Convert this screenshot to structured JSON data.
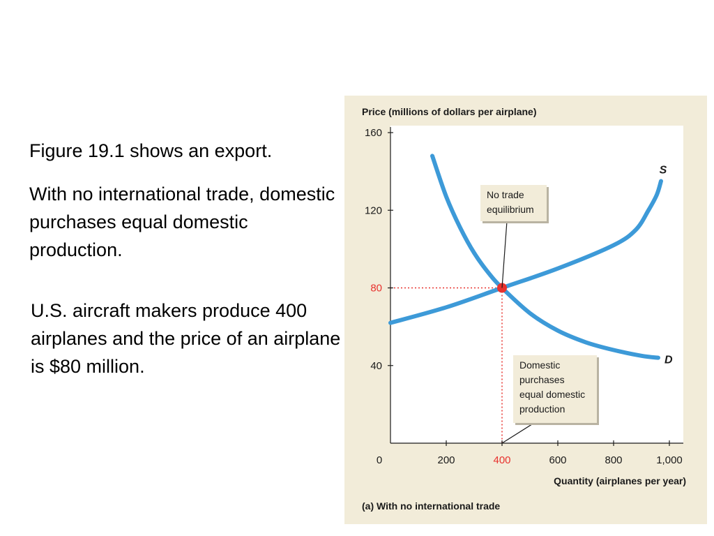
{
  "slide": {
    "paragraphs": [
      "Figure 19.1 shows an export.",
      "With no international trade, domestic purchases equal domestic production.",
      "U.S. aircraft makers produce 400 airplanes and the price of an airplane is $80 million."
    ]
  },
  "colors": {
    "panel_bg": "#f2ecd9",
    "plot_bg": "#ffffff",
    "curve": "#3d9ad8",
    "equilibrium": "#e8322e",
    "label_box_bg": "#f2ecd9",
    "axis": "#1a1a1a"
  },
  "chart_data": {
    "type": "line",
    "title": "",
    "ylabel": "Price (millions of dollars per airplane)",
    "xlabel": "Quantity (airplanes per year)",
    "caption": "(a) With no international trade",
    "xlim": [
      0,
      1050
    ],
    "ylim": [
      0,
      160
    ],
    "x_ticks": [
      0,
      200,
      400,
      600,
      800,
      1000
    ],
    "x_tick_labels": [
      "0",
      "200",
      "400",
      "600",
      "800",
      "1,000"
    ],
    "y_ticks": [
      40,
      80,
      120,
      160
    ],
    "y_tick_labels": [
      "40",
      "80",
      "120",
      "160"
    ],
    "highlight_tick_color": "#e8322e",
    "grid": false,
    "series": [
      {
        "name": "S",
        "points": [
          [
            0,
            62
          ],
          [
            200,
            70
          ],
          [
            400,
            80
          ],
          [
            600,
            90
          ],
          [
            800,
            102
          ],
          [
            880,
            110
          ],
          [
            925,
            120
          ],
          [
            955,
            128
          ],
          [
            970,
            135
          ]
        ]
      },
      {
        "name": "D",
        "points": [
          [
            150,
            148
          ],
          [
            200,
            127
          ],
          [
            250,
            111
          ],
          [
            300,
            98
          ],
          [
            350,
            88
          ],
          [
            400,
            80
          ],
          [
            500,
            67
          ],
          [
            600,
            58
          ],
          [
            700,
            52
          ],
          [
            800,
            48
          ],
          [
            900,
            45
          ],
          [
            960,
            44
          ]
        ]
      }
    ],
    "equilibrium": {
      "x": 400,
      "y": 80
    },
    "annotations": [
      {
        "text": [
          "No trade",
          "equilibrium"
        ],
        "points_to": [
          400,
          80
        ]
      },
      {
        "text": [
          "Domestic",
          "purchases",
          "equal domestic",
          "production"
        ],
        "points_to": [
          400,
          0
        ]
      }
    ]
  }
}
